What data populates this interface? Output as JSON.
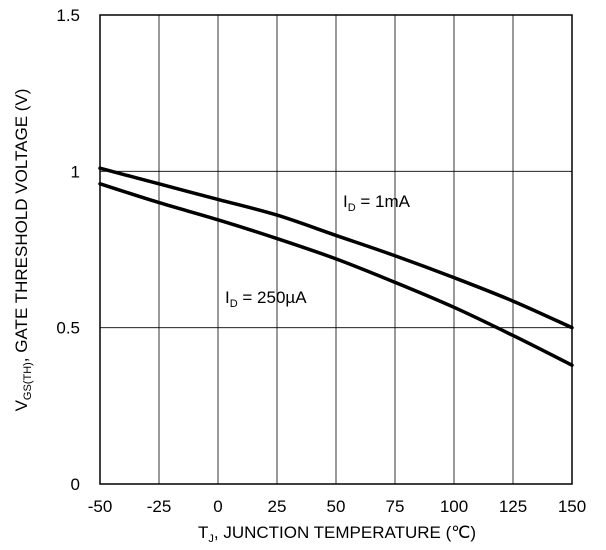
{
  "chart_data": {
    "type": "line",
    "title": "",
    "xlabel": {
      "main": "T",
      "sub": "J",
      "rest": ", JUNCTION TEMPERATURE (℃)"
    },
    "ylabel": {
      "main": "V",
      "sub": "GS(TH)",
      "rest": ",  GATE THRESHOLD VOLTAGE (V)"
    },
    "xlim": [
      -50,
      150
    ],
    "ylim": [
      0,
      1.5
    ],
    "xticks": [
      -50,
      -25,
      0,
      25,
      50,
      75,
      100,
      125,
      150
    ],
    "xtick_labels": [
      "-50",
      "-25",
      "0",
      "25",
      "50",
      "75",
      "100",
      "125",
      "150"
    ],
    "yticks": [
      0,
      0.5,
      1,
      1.5
    ],
    "ytick_labels": [
      "0",
      "0.5",
      "1",
      "1.5"
    ],
    "grid": true,
    "legend": "none",
    "series": [
      {
        "name": "I_D = 1mA",
        "label": {
          "main": "I",
          "sub": "D",
          "rest": " = 1mA"
        },
        "color": "#000000",
        "x": [
          -50,
          -25,
          0,
          25,
          50,
          75,
          100,
          125,
          150
        ],
        "y": [
          1.01,
          0.96,
          0.91,
          0.86,
          0.795,
          0.73,
          0.66,
          0.585,
          0.5
        ]
      },
      {
        "name": "I_D = 250µA",
        "label": {
          "main": "I",
          "sub": "D",
          "rest": " = 250µA"
        },
        "color": "#000000",
        "x": [
          -50,
          -25,
          0,
          25,
          50,
          75,
          100,
          125,
          150
        ],
        "y": [
          0.96,
          0.9,
          0.845,
          0.785,
          0.72,
          0.645,
          0.565,
          0.475,
          0.38
        ]
      }
    ]
  }
}
